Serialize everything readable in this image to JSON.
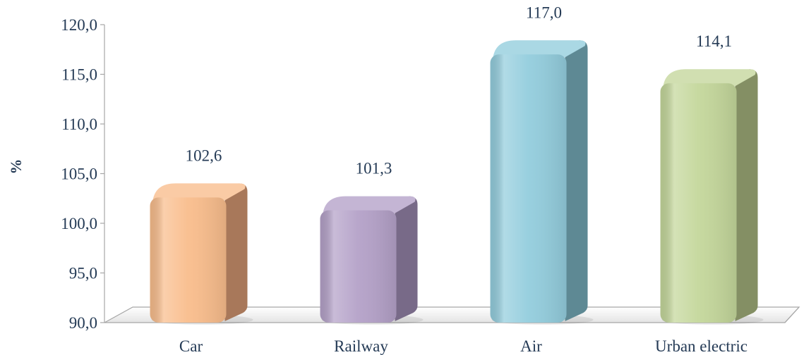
{
  "chart_data": {
    "type": "bar",
    "ylabel": "%",
    "xlabel": "",
    "title": "",
    "ylim": [
      90,
      120
    ],
    "yticks": [
      "90,0",
      "95,0",
      "100,0",
      "105,0",
      "110,0",
      "115,0",
      "120,0"
    ],
    "categories": [
      "Car",
      "Railway",
      "Air",
      "Urban electric"
    ],
    "values": [
      102.6,
      101.3,
      117.0,
      114.1
    ],
    "data_labels": [
      "102,6",
      "101,3",
      "117,0",
      "114,1"
    ],
    "colors": [
      "#f9bd8c",
      "#b4a1c8",
      "#93cddd",
      "#c4d79b"
    ],
    "side_colors": [
      "#a8785a",
      "#786a88",
      "#5e8994",
      "#848f64"
    ],
    "grid": false,
    "legend": "none"
  }
}
